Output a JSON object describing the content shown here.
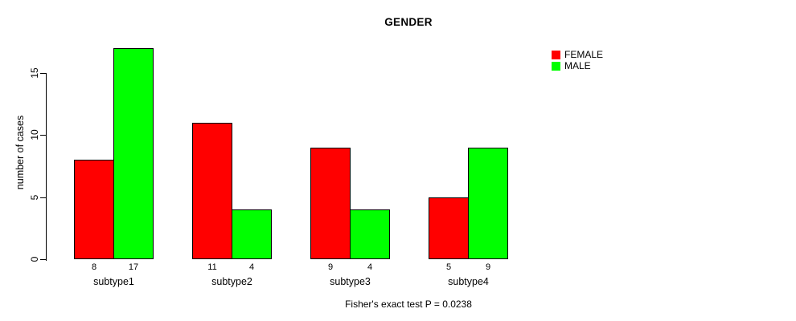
{
  "chart_data": {
    "type": "bar",
    "grouped": true,
    "title": "GENDER",
    "xlabel": "",
    "ylabel": "number of cases",
    "categories": [
      "subtype1",
      "subtype2",
      "subtype3",
      "subtype4"
    ],
    "series": [
      {
        "name": "FEMALE",
        "color": "#FF0000",
        "values": [
          8,
          11,
          9,
          5
        ]
      },
      {
        "name": "MALE",
        "color": "#00FF00",
        "values": [
          17,
          4,
          4,
          9
        ]
      }
    ],
    "bar_value_labels": [
      [
        8,
        17
      ],
      [
        11,
        4
      ],
      [
        9,
        4
      ],
      [
        5,
        9
      ]
    ],
    "ylim": [
      0,
      17
    ],
    "yticks": [
      0,
      5,
      10,
      15
    ],
    "grid": false,
    "legend_position": "top-right",
    "annotation": "Fisher's exact test P = 0.0238",
    "bar_outline_color": "#000000",
    "background_color": "#FFFFFF"
  }
}
